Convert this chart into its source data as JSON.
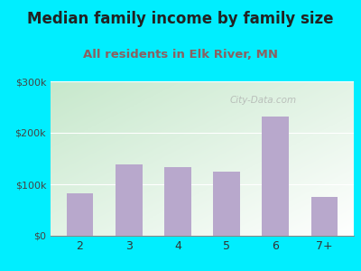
{
  "title": "Median family income by family size",
  "subtitle": "All residents in Elk River, MN",
  "categories": [
    "2",
    "3",
    "4",
    "5",
    "6",
    "7+"
  ],
  "values": [
    82000,
    138000,
    133000,
    125000,
    232000,
    75000
  ],
  "bar_color": "#b8a8cc",
  "ylim": [
    0,
    300000
  ],
  "yticks": [
    0,
    100000,
    200000,
    300000
  ],
  "ytick_labels": [
    "$0",
    "$100k",
    "$200k",
    "$300k"
  ],
  "bg_outer": "#00eeff",
  "bg_plot_topleft": "#c8e8cc",
  "bg_plot_white": "#f8fff8",
  "title_color": "#222222",
  "subtitle_color": "#8b6060",
  "title_fontsize": 12,
  "subtitle_fontsize": 9.5,
  "watermark": "City-Data.com"
}
